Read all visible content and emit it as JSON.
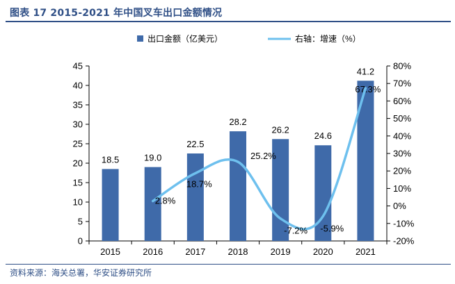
{
  "header": {
    "title": "图表 17 2015-2021 年中国叉车出口金额情况"
  },
  "footer": {
    "source": "资料来源：海关总署，华安证券研究所"
  },
  "colors": {
    "title": "#2f4f86",
    "bar": "#3f6aa9",
    "line": "#6ec0ee",
    "axis": "#000000"
  },
  "chart_data": {
    "type": "bar",
    "categories": [
      "2015",
      "2016",
      "2017",
      "2018",
      "2019",
      "2020",
      "2021"
    ],
    "series": [
      {
        "name": "出口金额（亿美元）",
        "type": "bar",
        "axis": "left",
        "values": [
          18.5,
          19.0,
          22.5,
          28.2,
          26.2,
          24.6,
          41.2
        ],
        "labels": [
          "18.5",
          "19.0",
          "22.5",
          "28.2",
          "26.2",
          "24.6",
          "41.2"
        ]
      },
      {
        "name": "右轴：增速（%）",
        "type": "line",
        "axis": "right",
        "smooth": true,
        "values": [
          null,
          2.8,
          18.7,
          25.2,
          -7.2,
          -5.9,
          67.3
        ],
        "labels": [
          null,
          "2.8%",
          "18.7%",
          "25.2%",
          "-7.2%",
          "-5.9%",
          "67.3%"
        ]
      }
    ],
    "y_left": {
      "min": 0,
      "max": 45,
      "step": 5,
      "ticks": [
        "0",
        "5",
        "10",
        "15",
        "20",
        "25",
        "30",
        "35",
        "40",
        "45"
      ]
    },
    "y_right": {
      "min": -20,
      "max": 80,
      "step": 10,
      "ticks": [
        "-20%",
        "-10%",
        "0%",
        "10%",
        "20%",
        "30%",
        "40%",
        "50%",
        "60%",
        "70%",
        "80%"
      ]
    },
    "grid": false,
    "legend": "top-center"
  }
}
